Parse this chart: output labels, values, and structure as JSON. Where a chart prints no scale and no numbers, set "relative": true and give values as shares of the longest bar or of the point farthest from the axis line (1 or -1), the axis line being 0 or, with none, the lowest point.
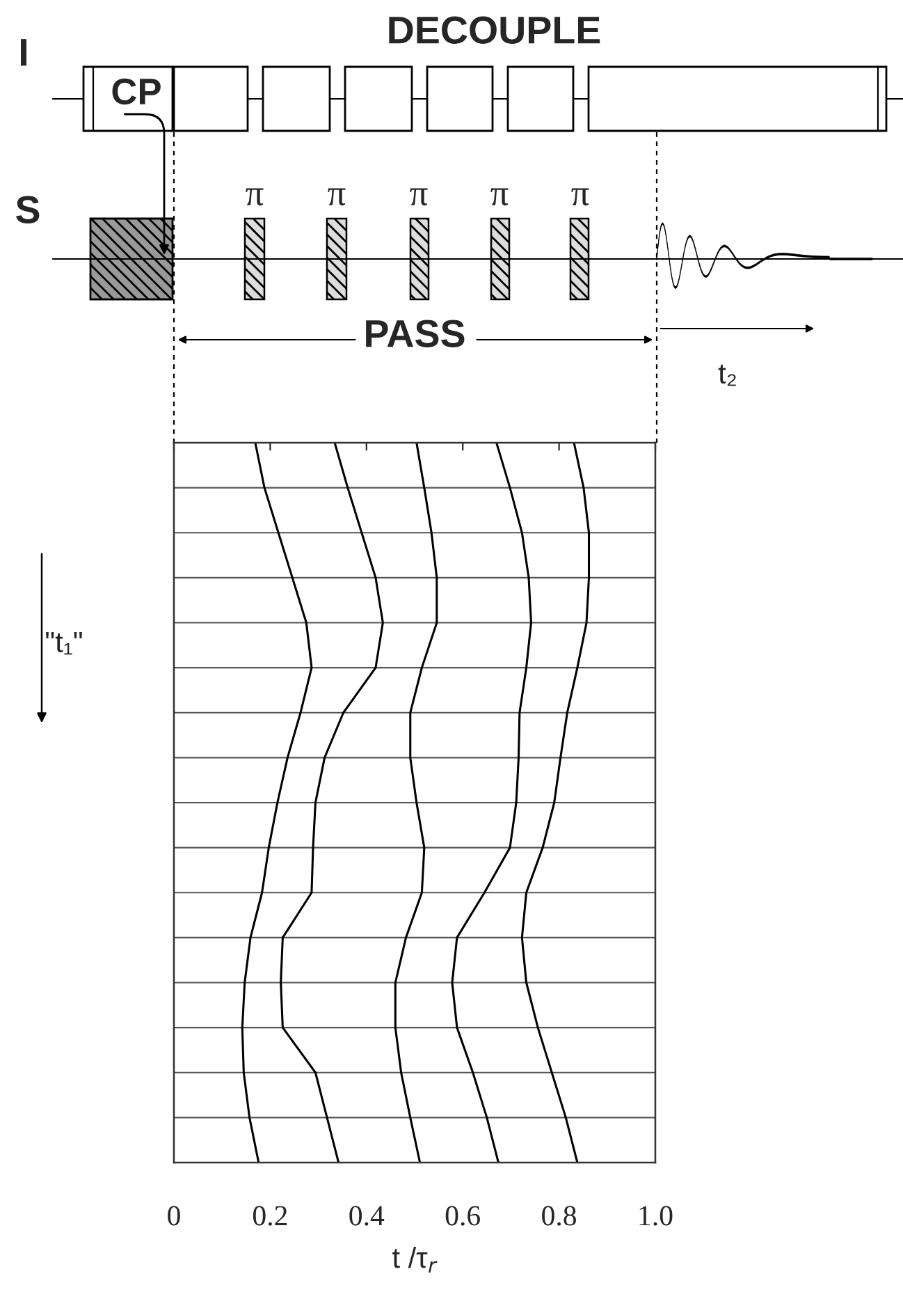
{
  "chart_data": {
    "type": "line",
    "relative": true,
    "xlabel": "t /τ$_{r}$",
    "ylabel": "\"t₁\"",
    "xlim": [
      0,
      1
    ],
    "xticks": [
      0,
      0.2,
      0.4,
      0.6,
      0.8,
      {
        "value": 1,
        "label": "1.0"
      }
    ],
    "grid": "y",
    "tick_labels": "x",
    "line_style": "solid",
    "annotations": [
      "I",
      "S",
      "DECOUPLE",
      "CP",
      "π",
      "π",
      "π",
      "π",
      "π",
      "PASS",
      "t₂"
    ],
    "series": [
      {
        "color": "#000000",
        "x": [
          0.169,
          0.188,
          0.217,
          0.246,
          0.275,
          0.286,
          0.263,
          0.236,
          0.215,
          0.197,
          0.183,
          0.159,
          0.147,
          0.142,
          0.145,
          0.157,
          0.176
        ],
        "values": [
          1,
          0.9375,
          0.875,
          0.8125,
          0.75,
          0.6875,
          0.625,
          0.5625,
          0.5,
          0.4375,
          0.375,
          0.3125,
          0.25,
          0.1875,
          0.125,
          0.0625,
          0
        ]
      },
      {
        "color": "#000000",
        "x": [
          0.334,
          0.361,
          0.39,
          0.419,
          0.434,
          0.419,
          0.352,
          0.313,
          0.294,
          0.289,
          0.286,
          0.226,
          0.222,
          0.226,
          0.294,
          0.318,
          0.342
        ],
        "values": [
          1,
          0.9375,
          0.875,
          0.8125,
          0.75,
          0.6875,
          0.625,
          0.5625,
          0.5,
          0.4375,
          0.375,
          0.3125,
          0.25,
          0.1875,
          0.125,
          0.0625,
          0
        ]
      },
      {
        "color": "#000000",
        "x": [
          0.504,
          0.52,
          0.535,
          0.546,
          0.546,
          0.515,
          0.491,
          0.491,
          0.504,
          0.52,
          0.515,
          0.482,
          0.46,
          0.46,
          0.472,
          0.491,
          0.511
        ],
        "values": [
          1,
          0.9375,
          0.875,
          0.8125,
          0.75,
          0.6875,
          0.625,
          0.5625,
          0.5,
          0.4375,
          0.375,
          0.3125,
          0.25,
          0.1875,
          0.125,
          0.0625,
          0
        ]
      },
      {
        "color": "#000000",
        "x": [
          0.67,
          0.698,
          0.723,
          0.737,
          0.742,
          0.732,
          0.718,
          0.716,
          0.711,
          0.698,
          0.645,
          0.588,
          0.578,
          0.588,
          0.621,
          0.65,
          0.674
        ],
        "values": [
          1,
          0.9375,
          0.875,
          0.8125,
          0.75,
          0.6875,
          0.625,
          0.5625,
          0.5,
          0.4375,
          0.375,
          0.3125,
          0.25,
          0.1875,
          0.125,
          0.0625,
          0
        ]
      },
      {
        "color": "#000000",
        "x": [
          0.831,
          0.851,
          0.862,
          0.862,
          0.857,
          0.838,
          0.817,
          0.803,
          0.79,
          0.766,
          0.732,
          0.723,
          0.732,
          0.756,
          0.785,
          0.814,
          0.838
        ],
        "values": [
          1,
          0.9375,
          0.875,
          0.8125,
          0.75,
          0.6875,
          0.625,
          0.5625,
          0.5,
          0.4375,
          0.375,
          0.3125,
          0.25,
          0.1875,
          0.125,
          0.0625,
          0
        ]
      }
    ]
  }
}
